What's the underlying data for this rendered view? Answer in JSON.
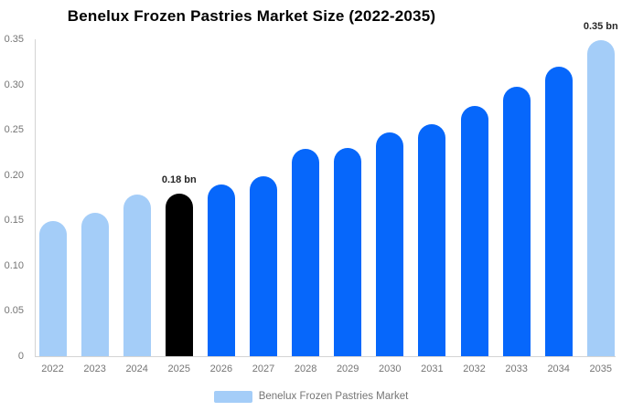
{
  "chart_data": {
    "type": "bar",
    "title": "Benelux Frozen Pastries Market Size (2022-2035)",
    "categories": [
      "2022",
      "2023",
      "2024",
      "2025",
      "2026",
      "2027",
      "2028",
      "2029",
      "2030",
      "2031",
      "2032",
      "2033",
      "2034",
      "2035"
    ],
    "values": [
      0.149,
      0.159,
      0.179,
      0.18,
      0.19,
      0.199,
      0.229,
      0.23,
      0.247,
      0.257,
      0.277,
      0.298,
      0.32,
      0.35
    ],
    "unit": "bn",
    "xlabel": "",
    "ylabel": "",
    "ylim": [
      0,
      0.35
    ],
    "yticks": [
      "0.35",
      "0.30",
      "0.25",
      "0.20",
      "0.15",
      "0.10",
      "0.05",
      "0"
    ],
    "ytick_values": [
      0.35,
      0.3,
      0.25,
      0.2,
      0.15,
      0.1,
      0.05,
      0
    ],
    "grid": "off",
    "legend_position": "bottom-center",
    "bar_colors": [
      "#a4cdf8",
      "#a4cdf8",
      "#a4cdf8",
      "#000000",
      "#0667fb",
      "#0667fb",
      "#0667fb",
      "#0667fb",
      "#0667fb",
      "#0667fb",
      "#0667fb",
      "#0667fb",
      "#0667fb",
      "#a4cdf8"
    ],
    "annotations": [
      {
        "category": "2025",
        "text": "0.18 bn"
      },
      {
        "category": "2035",
        "text": "0.35 bn"
      }
    ],
    "legend": [
      {
        "label": "Benelux Frozen Pastries Market",
        "color": "#a4cdf8"
      }
    ]
  },
  "colors": {
    "light_blue": "#a4cdf8",
    "accent_blue": "#0667fb",
    "highlight_black": "#000000",
    "title_text": "#000000",
    "axis_text": "#757575",
    "axis_line": "#d4d4d4",
    "annotation_text": "#262626"
  }
}
